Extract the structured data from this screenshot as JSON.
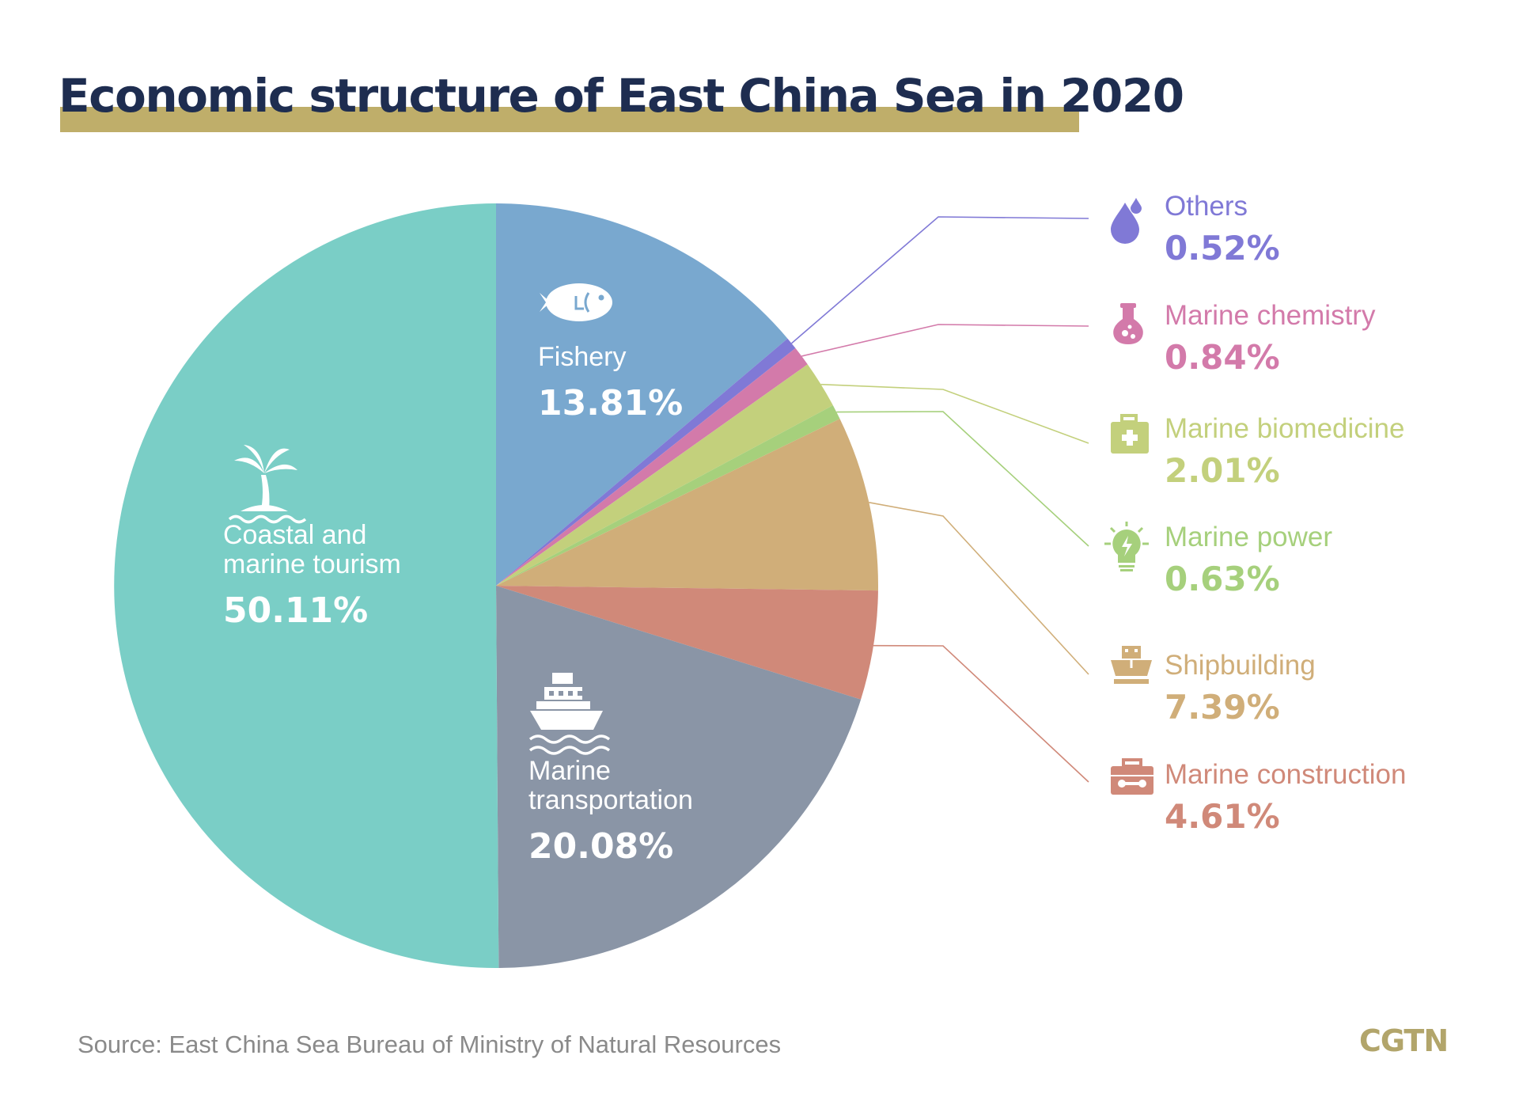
{
  "title": "Economic structure of East China Sea in 2020",
  "source": "Source: East China Sea Bureau of Ministry of Natural Resources",
  "logo": "CGTN",
  "colors": {
    "title": "#1e2d50",
    "title_bar": "#bfae6a",
    "logo": "#b2a56b"
  },
  "chart_data": {
    "type": "pie",
    "title": "Economic structure of East China Sea in 2020",
    "unit": "%",
    "slices": [
      {
        "label": "Fishery",
        "value": 13.81,
        "value_label": "13.81%",
        "color": "#79a8cf",
        "icon": "fish-icon",
        "label_position": "inside"
      },
      {
        "label": "Others",
        "value": 0.52,
        "value_label": "0.52%",
        "color": "#8079d6",
        "icon": "water-drop-icon",
        "label_position": "legend"
      },
      {
        "label": "Marine chemistry",
        "value": 0.84,
        "value_label": "0.84%",
        "color": "#d37aaa",
        "icon": "flask-icon",
        "label_position": "legend"
      },
      {
        "label": "Marine biomedicine",
        "value": 2.01,
        "value_label": "2.01%",
        "color": "#c3d07c",
        "icon": "medicine-kit-icon",
        "label_position": "legend"
      },
      {
        "label": "Marine power",
        "value": 0.63,
        "value_label": "0.63%",
        "color": "#a6d07c",
        "icon": "light-bulb-icon",
        "label_position": "legend"
      },
      {
        "label": "Shipbuilding",
        "value": 7.39,
        "value_label": "7.39%",
        "color": "#d0ae79",
        "icon": "ship-hull-icon",
        "label_position": "legend"
      },
      {
        "label": "Marine construction",
        "value": 4.61,
        "value_label": "4.61%",
        "color": "#d08979",
        "icon": "toolbox-icon",
        "label_position": "legend"
      },
      {
        "label": "Marine transportation",
        "value": 20.08,
        "value_label": "20.08%",
        "color": "#8a95a6",
        "icon": "cruise-ship-icon",
        "label_position": "inside"
      },
      {
        "label": "Coastal and marine tourism",
        "value": 50.11,
        "value_label": "50.11%",
        "color": "#7acec6",
        "icon": "palm-island-icon",
        "label_position": "inside"
      }
    ]
  }
}
